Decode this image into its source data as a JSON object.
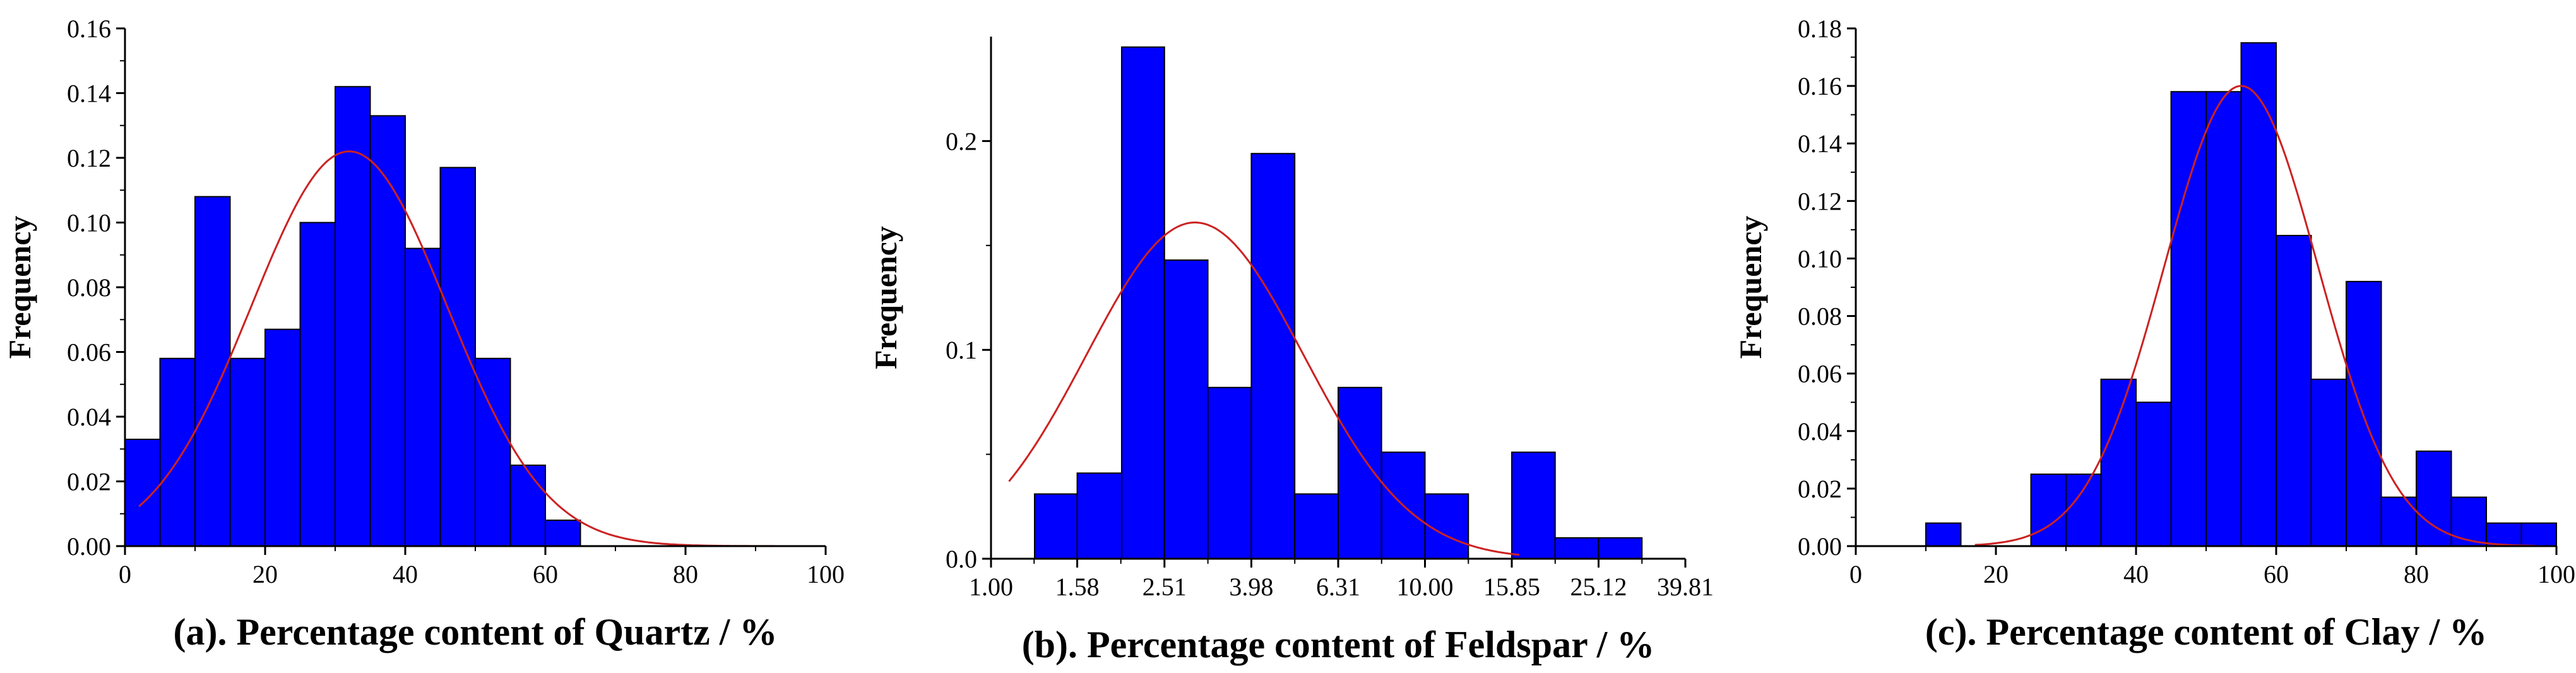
{
  "chart_data": [
    {
      "type": "bar",
      "panel": "a",
      "xlabel": "(a). Percentage content of Quartz / %",
      "ylabel": "Frequency",
      "x_scale": "linear",
      "xlim": [
        0,
        100
      ],
      "ylim": [
        0,
        0.16
      ],
      "x_ticks": [
        0,
        20,
        40,
        60,
        80,
        100
      ],
      "x_tick_labels": [
        "0",
        "20",
        "40",
        "60",
        "80",
        "100"
      ],
      "y_ticks": [
        0,
        0.02,
        0.04,
        0.06,
        0.08,
        0.1,
        0.12,
        0.14,
        0.16
      ],
      "y_tick_labels": [
        "0.00",
        "0.02",
        "0.04",
        "0.06",
        "0.08",
        "0.10",
        "0.12",
        "0.14",
        "0.16"
      ],
      "bin_edges": [
        0,
        5,
        10,
        15,
        20,
        25,
        30,
        35,
        40,
        45,
        50,
        55,
        60,
        65
      ],
      "values": [
        0.033,
        0.058,
        0.108,
        0.058,
        0.067,
        0.1,
        0.142,
        0.133,
        0.092,
        0.117,
        0.058,
        0.025,
        0.008
      ],
      "bar_color": "#0000ff",
      "curve": {
        "type": "normal",
        "mean": 32,
        "sd": 14,
        "peak": 0.122,
        "range": [
          2,
          93
        ],
        "color": "#cc2222"
      }
    },
    {
      "type": "bar",
      "panel": "b",
      "xlabel": "(b). Percentage content of Feldspar / %",
      "ylabel": "Frequency",
      "x_scale": "log",
      "xlim": [
        1,
        39.81
      ],
      "ylim": [
        0,
        0.25
      ],
      "x_ticks": [
        1,
        1.58,
        2.51,
        3.98,
        6.31,
        10,
        15.85,
        25.12,
        39.81
      ],
      "x_tick_labels": [
        "1.00",
        "1.58",
        "2.51",
        "3.98",
        "6.31",
        "10.00",
        "15.85",
        "25.12",
        "39.81"
      ],
      "y_ticks": [
        0,
        0.1,
        0.2
      ],
      "y_tick_labels": [
        "0.0",
        "0.1",
        "0.2"
      ],
      "bin_edges": [
        1.26,
        1.58,
        2.0,
        2.51,
        3.16,
        3.98,
        5.01,
        6.31,
        7.94,
        10,
        12.59,
        15.85,
        19.95,
        25.12,
        31.62
      ],
      "values": [
        0.031,
        0.041,
        0.245,
        0.143,
        0.082,
        0.194,
        0.031,
        0.082,
        0.051,
        0.031,
        0,
        0.051,
        0.01,
        0.01
      ],
      "bar_color": "#0000ff",
      "curve": {
        "type": "lognormal",
        "mean_log10": 0.47,
        "sd_log10": 0.25,
        "peak": 0.161,
        "range": [
          1.1,
          16.5
        ],
        "color": "#cc2222"
      }
    },
    {
      "type": "bar",
      "panel": "c",
      "xlabel": "(c). Percentage content of Clay / %",
      "ylabel": "Frequency",
      "x_scale": "linear",
      "xlim": [
        0,
        100
      ],
      "ylim": [
        0,
        0.18
      ],
      "x_ticks": [
        0,
        20,
        40,
        60,
        80,
        100
      ],
      "x_tick_labels": [
        "0",
        "20",
        "40",
        "60",
        "80",
        "100"
      ],
      "y_ticks": [
        0,
        0.02,
        0.04,
        0.06,
        0.08,
        0.1,
        0.12,
        0.14,
        0.16,
        0.18
      ],
      "y_tick_labels": [
        "0.00",
        "0.02",
        "0.04",
        "0.06",
        "0.08",
        "0.10",
        "0.12",
        "0.14",
        "0.16",
        "0.18"
      ],
      "bin_edges": [
        10,
        15,
        20,
        25,
        30,
        35,
        40,
        45,
        50,
        55,
        60,
        65,
        70,
        75,
        80,
        85,
        90,
        95,
        100
      ],
      "values": [
        0.008,
        0,
        0,
        0.025,
        0.025,
        0.058,
        0.05,
        0.158,
        0.158,
        0.175,
        0.108,
        0.058,
        0.092,
        0.017,
        0.033,
        0.017,
        0.008,
        0.008
      ],
      "bar_color": "#0000ff",
      "curve": {
        "type": "normal",
        "mean": 55,
        "sd": 11,
        "peak": 0.16,
        "range": [
          17,
          97
        ],
        "color": "#cc2222"
      }
    }
  ]
}
